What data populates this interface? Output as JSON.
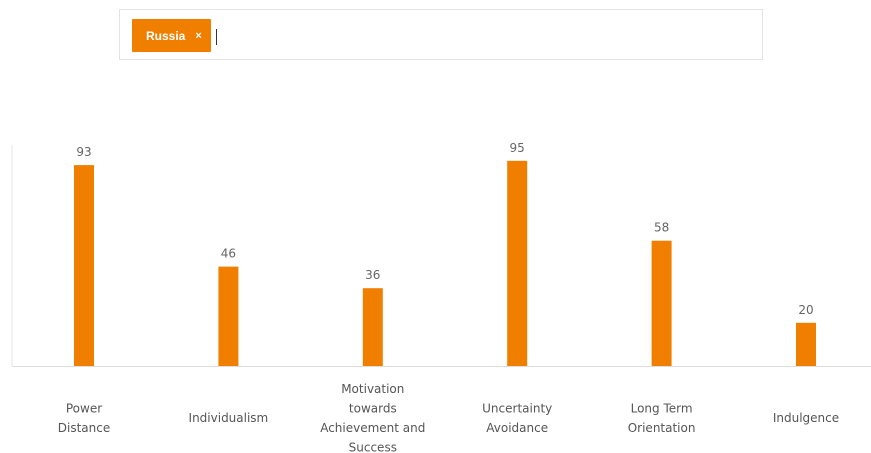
{
  "search": {
    "tags": [
      {
        "label": "Russia",
        "remove_glyph": "×"
      }
    ],
    "placeholder": ""
  },
  "colors": {
    "accent": "#f07f00",
    "axis": "#dddddd",
    "value_text": "#666666",
    "label_text": "#555555"
  },
  "chart_data": {
    "type": "bar",
    "categories": [
      [
        "Power",
        "Distance"
      ],
      [
        "Individualism"
      ],
      [
        "Motivation",
        "towards",
        "Achievement and",
        "Success"
      ],
      [
        "Uncertainty",
        "Avoidance"
      ],
      [
        "Long Term",
        "Orientation"
      ],
      [
        "Indulgence"
      ]
    ],
    "series": [
      {
        "values": [
          93,
          46,
          36,
          95,
          58,
          20
        ]
      }
    ],
    "ylim": [
      0,
      100
    ],
    "grid": false,
    "data_labels": true
  }
}
